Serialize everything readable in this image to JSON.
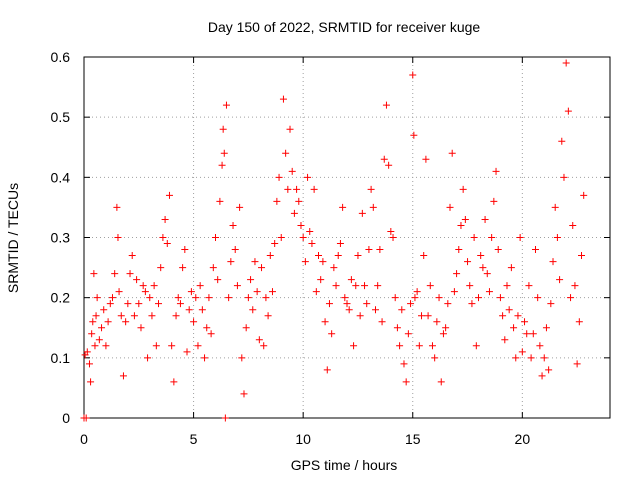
{
  "chart_data": {
    "type": "scatter",
    "title": "Day 150 of 2022, SRMTID for receiver kuge",
    "xlabel": "GPS time / hours",
    "ylabel": "SRMTID / TECUs",
    "xlim": [
      0,
      24
    ],
    "ylim": [
      0,
      0.6
    ],
    "xticks": [
      0,
      5,
      10,
      15,
      20
    ],
    "xtick_labels": [
      "0",
      "5",
      "10",
      "15",
      "20"
    ],
    "yticks": [
      0,
      0.1,
      0.2,
      0.3,
      0.4,
      0.5,
      0.6
    ],
    "ytick_labels": [
      "0",
      "0.1",
      "0.2",
      "0.3",
      "0.4",
      "0.5",
      "0.6"
    ],
    "grid": true,
    "marker": "plus",
    "series": [
      {
        "name": "SRMTID",
        "color": "#ff0000",
        "points": [
          [
            0.0,
            0.0
          ],
          [
            0.05,
            0.105
          ],
          [
            0.1,
            0.0
          ],
          [
            0.15,
            0.11
          ],
          [
            0.25,
            0.09
          ],
          [
            0.3,
            0.06
          ],
          [
            0.35,
            0.14
          ],
          [
            0.4,
            0.16
          ],
          [
            0.45,
            0.24
          ],
          [
            0.5,
            0.12
          ],
          [
            0.55,
            0.17
          ],
          [
            0.6,
            0.2
          ],
          [
            0.7,
            0.13
          ],
          [
            0.8,
            0.15
          ],
          [
            0.9,
            0.18
          ],
          [
            1.0,
            0.12
          ],
          [
            1.1,
            0.16
          ],
          [
            1.2,
            0.19
          ],
          [
            1.3,
            0.2
          ],
          [
            1.4,
            0.24
          ],
          [
            1.5,
            0.35
          ],
          [
            1.55,
            0.3
          ],
          [
            1.6,
            0.21
          ],
          [
            1.7,
            0.17
          ],
          [
            1.8,
            0.07
          ],
          [
            1.9,
            0.16
          ],
          [
            2.0,
            0.19
          ],
          [
            2.1,
            0.24
          ],
          [
            2.2,
            0.27
          ],
          [
            2.3,
            0.17
          ],
          [
            2.4,
            0.23
          ],
          [
            2.5,
            0.19
          ],
          [
            2.6,
            0.15
          ],
          [
            2.7,
            0.22
          ],
          [
            2.8,
            0.21
          ],
          [
            2.9,
            0.1
          ],
          [
            3.0,
            0.2
          ],
          [
            3.1,
            0.17
          ],
          [
            3.2,
            0.22
          ],
          [
            3.3,
            0.12
          ],
          [
            3.4,
            0.19
          ],
          [
            3.5,
            0.25
          ],
          [
            3.6,
            0.3
          ],
          [
            3.7,
            0.33
          ],
          [
            3.8,
            0.29
          ],
          [
            3.9,
            0.37
          ],
          [
            4.0,
            0.12
          ],
          [
            4.1,
            0.06
          ],
          [
            4.2,
            0.17
          ],
          [
            4.3,
            0.2
          ],
          [
            4.4,
            0.19
          ],
          [
            4.5,
            0.25
          ],
          [
            4.6,
            0.28
          ],
          [
            4.7,
            0.11
          ],
          [
            4.8,
            0.18
          ],
          [
            4.9,
            0.21
          ],
          [
            5.0,
            0.16
          ],
          [
            5.1,
            0.2
          ],
          [
            5.2,
            0.12
          ],
          [
            5.3,
            0.22
          ],
          [
            5.4,
            0.18
          ],
          [
            5.5,
            0.1
          ],
          [
            5.6,
            0.15
          ],
          [
            5.7,
            0.2
          ],
          [
            5.8,
            0.14
          ],
          [
            5.9,
            0.25
          ],
          [
            6.0,
            0.3
          ],
          [
            6.1,
            0.23
          ],
          [
            6.2,
            0.36
          ],
          [
            6.3,
            0.42
          ],
          [
            6.35,
            0.48
          ],
          [
            6.4,
            0.44
          ],
          [
            6.45,
            0.0
          ],
          [
            6.5,
            0.52
          ],
          [
            6.6,
            0.2
          ],
          [
            6.7,
            0.26
          ],
          [
            6.8,
            0.32
          ],
          [
            6.9,
            0.28
          ],
          [
            7.0,
            0.22
          ],
          [
            7.1,
            0.35
          ],
          [
            7.2,
            0.1
          ],
          [
            7.3,
            0.04
          ],
          [
            7.4,
            0.15
          ],
          [
            7.5,
            0.2
          ],
          [
            7.6,
            0.23
          ],
          [
            7.7,
            0.18
          ],
          [
            7.8,
            0.26
          ],
          [
            7.9,
            0.21
          ],
          [
            8.0,
            0.13
          ],
          [
            8.1,
            0.25
          ],
          [
            8.2,
            0.12
          ],
          [
            8.3,
            0.2
          ],
          [
            8.4,
            0.17
          ],
          [
            8.5,
            0.27
          ],
          [
            8.6,
            0.21
          ],
          [
            8.7,
            0.29
          ],
          [
            8.8,
            0.36
          ],
          [
            8.9,
            0.4
          ],
          [
            9.0,
            0.3
          ],
          [
            9.1,
            0.53
          ],
          [
            9.2,
            0.44
          ],
          [
            9.3,
            0.38
          ],
          [
            9.4,
            0.48
          ],
          [
            9.5,
            0.41
          ],
          [
            9.6,
            0.34
          ],
          [
            9.7,
            0.38
          ],
          [
            9.8,
            0.36
          ],
          [
            9.9,
            0.32
          ],
          [
            10.0,
            0.3
          ],
          [
            10.1,
            0.26
          ],
          [
            10.2,
            0.4
          ],
          [
            10.3,
            0.31
          ],
          [
            10.4,
            0.29
          ],
          [
            10.5,
            0.38
          ],
          [
            10.6,
            0.21
          ],
          [
            10.7,
            0.27
          ],
          [
            10.8,
            0.23
          ],
          [
            10.9,
            0.26
          ],
          [
            11.0,
            0.16
          ],
          [
            11.1,
            0.08
          ],
          [
            11.2,
            0.19
          ],
          [
            11.3,
            0.14
          ],
          [
            11.4,
            0.25
          ],
          [
            11.5,
            0.22
          ],
          [
            11.6,
            0.27
          ],
          [
            11.7,
            0.29
          ],
          [
            11.8,
            0.35
          ],
          [
            11.9,
            0.2
          ],
          [
            12.0,
            0.19
          ],
          [
            12.1,
            0.18
          ],
          [
            12.2,
            0.23
          ],
          [
            12.3,
            0.12
          ],
          [
            12.4,
            0.22
          ],
          [
            12.5,
            0.27
          ],
          [
            12.6,
            0.17
          ],
          [
            12.7,
            0.34
          ],
          [
            12.8,
            0.22
          ],
          [
            12.9,
            0.19
          ],
          [
            13.0,
            0.28
          ],
          [
            13.1,
            0.38
          ],
          [
            13.2,
            0.35
          ],
          [
            13.3,
            0.18
          ],
          [
            13.4,
            0.22
          ],
          [
            13.5,
            0.28
          ],
          [
            13.6,
            0.16
          ],
          [
            13.7,
            0.43
          ],
          [
            13.8,
            0.52
          ],
          [
            13.9,
            0.42
          ],
          [
            14.0,
            0.31
          ],
          [
            14.1,
            0.3
          ],
          [
            14.2,
            0.2
          ],
          [
            14.3,
            0.15
          ],
          [
            14.4,
            0.12
          ],
          [
            14.5,
            0.18
          ],
          [
            14.6,
            0.09
          ],
          [
            14.7,
            0.06
          ],
          [
            14.8,
            0.14
          ],
          [
            14.9,
            0.19
          ],
          [
            15.0,
            0.57
          ],
          [
            15.05,
            0.47
          ],
          [
            15.1,
            0.2
          ],
          [
            15.2,
            0.21
          ],
          [
            15.3,
            0.12
          ],
          [
            15.4,
            0.17
          ],
          [
            15.5,
            0.27
          ],
          [
            15.6,
            0.43
          ],
          [
            15.7,
            0.17
          ],
          [
            15.8,
            0.22
          ],
          [
            15.9,
            0.12
          ],
          [
            16.0,
            0.1
          ],
          [
            16.1,
            0.16
          ],
          [
            16.2,
            0.2
          ],
          [
            16.3,
            0.06
          ],
          [
            16.4,
            0.14
          ],
          [
            16.5,
            0.15
          ],
          [
            16.6,
            0.19
          ],
          [
            16.7,
            0.35
          ],
          [
            16.8,
            0.44
          ],
          [
            16.9,
            0.21
          ],
          [
            17.0,
            0.24
          ],
          [
            17.1,
            0.28
          ],
          [
            17.2,
            0.32
          ],
          [
            17.3,
            0.38
          ],
          [
            17.4,
            0.33
          ],
          [
            17.5,
            0.26
          ],
          [
            17.6,
            0.22
          ],
          [
            17.7,
            0.19
          ],
          [
            17.8,
            0.3
          ],
          [
            17.9,
            0.12
          ],
          [
            18.0,
            0.2
          ],
          [
            18.1,
            0.27
          ],
          [
            18.2,
            0.25
          ],
          [
            18.3,
            0.33
          ],
          [
            18.4,
            0.24
          ],
          [
            18.5,
            0.21
          ],
          [
            18.6,
            0.3
          ],
          [
            18.7,
            0.36
          ],
          [
            18.8,
            0.41
          ],
          [
            18.9,
            0.28
          ],
          [
            19.0,
            0.2
          ],
          [
            19.1,
            0.17
          ],
          [
            19.2,
            0.13
          ],
          [
            19.3,
            0.22
          ],
          [
            19.4,
            0.18
          ],
          [
            19.5,
            0.25
          ],
          [
            19.6,
            0.15
          ],
          [
            19.7,
            0.1
          ],
          [
            19.8,
            0.17
          ],
          [
            19.9,
            0.3
          ],
          [
            20.0,
            0.11
          ],
          [
            20.1,
            0.16
          ],
          [
            20.2,
            0.14
          ],
          [
            20.3,
            0.22
          ],
          [
            20.4,
            0.1
          ],
          [
            20.5,
            0.14
          ],
          [
            20.6,
            0.28
          ],
          [
            20.7,
            0.2
          ],
          [
            20.8,
            0.12
          ],
          [
            20.9,
            0.07
          ],
          [
            21.0,
            0.1
          ],
          [
            21.1,
            0.15
          ],
          [
            21.2,
            0.08
          ],
          [
            21.3,
            0.19
          ],
          [
            21.4,
            0.26
          ],
          [
            21.5,
            0.35
          ],
          [
            21.6,
            0.3
          ],
          [
            21.7,
            0.23
          ],
          [
            21.8,
            0.46
          ],
          [
            21.9,
            0.4
          ],
          [
            22.0,
            0.59
          ],
          [
            22.1,
            0.51
          ],
          [
            22.2,
            0.2
          ],
          [
            22.3,
            0.32
          ],
          [
            22.4,
            0.22
          ],
          [
            22.5,
            0.09
          ],
          [
            22.6,
            0.16
          ],
          [
            22.7,
            0.27
          ],
          [
            22.8,
            0.37
          ]
        ]
      }
    ]
  }
}
